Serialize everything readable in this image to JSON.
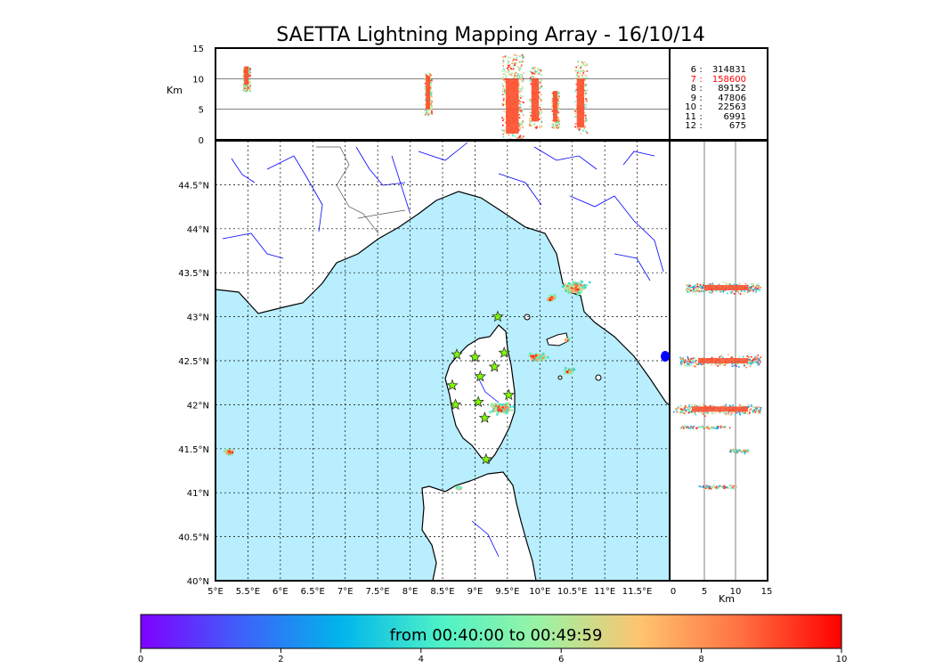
{
  "chart_data": {
    "type": "scatter",
    "title": "SAETTA Lightning Mapping Array - 16/10/14",
    "map_panel": {
      "x_ticks": [
        "5°E",
        "5.5°E",
        "6°E",
        "6.5°E",
        "7°E",
        "7.5°E",
        "8°E",
        "8.5°E",
        "9°E",
        "9.5°E",
        "10°E",
        "10.5°E",
        "11°E",
        "11.5°E"
      ],
      "y_ticks": [
        "40°N",
        "40.5°N",
        "41°N",
        "41.5°N",
        "42°N",
        "42.5°N",
        "43°N",
        "43.5°N",
        "44°N",
        "44.5°N"
      ],
      "lon_range": [
        5,
        12
      ],
      "lat_range": [
        40,
        45
      ],
      "stations": [
        {
          "lon": 9.35,
          "lat": 43.0
        },
        {
          "lon": 8.72,
          "lat": 42.57
        },
        {
          "lon": 9.0,
          "lat": 42.54
        },
        {
          "lon": 9.45,
          "lat": 42.59
        },
        {
          "lon": 9.3,
          "lat": 42.43
        },
        {
          "lon": 9.08,
          "lat": 42.32
        },
        {
          "lon": 8.65,
          "lat": 42.22
        },
        {
          "lon": 9.52,
          "lat": 42.11
        },
        {
          "lon": 8.7,
          "lat": 42.0
        },
        {
          "lon": 9.05,
          "lat": 42.03
        },
        {
          "lon": 9.15,
          "lat": 41.85
        },
        {
          "lon": 9.17,
          "lat": 41.38
        }
      ],
      "clusters": [
        {
          "lon": 10.55,
          "lat": 43.33,
          "size": "large"
        },
        {
          "lon": 10.18,
          "lat": 43.21,
          "size": "small"
        },
        {
          "lon": 9.95,
          "lat": 42.54,
          "size": "medium"
        },
        {
          "lon": 9.4,
          "lat": 41.96,
          "size": "large"
        },
        {
          "lon": 10.45,
          "lat": 42.38,
          "size": "small"
        },
        {
          "lon": 5.22,
          "lat": 41.46,
          "size": "small"
        },
        {
          "lon": 8.75,
          "lat": 41.05,
          "size": "tiny"
        },
        {
          "lon": 10.42,
          "lat": 42.74,
          "size": "tiny"
        }
      ]
    },
    "time_panel": {
      "y_label": "Km",
      "y_ticks": [
        "0",
        "5",
        "10",
        "15"
      ],
      "y_range": [
        0,
        15
      ],
      "columns": [
        {
          "frac": 0.06,
          "alt": [
            8,
            12
          ]
        },
        {
          "frac": 0.46,
          "alt": [
            4,
            11
          ]
        },
        {
          "frac": 0.63,
          "alt": [
            0,
            14
          ]
        },
        {
          "frac": 0.69,
          "alt": [
            2,
            12
          ]
        },
        {
          "frac": 0.74,
          "alt": [
            2,
            8
          ]
        },
        {
          "frac": 0.79,
          "alt": [
            1,
            13
          ]
        }
      ]
    },
    "side_panel": {
      "x_label": "Km",
      "x_ticks": [
        "0",
        "5",
        "10",
        "15"
      ],
      "x_range": [
        0,
        15
      ],
      "bands": [
        {
          "lat": 43.33,
          "alt": [
            2,
            14
          ]
        },
        {
          "lat": 42.5,
          "alt": [
            1,
            14
          ]
        },
        {
          "lat": 41.95,
          "alt": [
            0,
            14
          ]
        },
        {
          "lat": 41.75,
          "alt": [
            1,
            9
          ]
        },
        {
          "lat": 41.48,
          "alt": [
            9,
            12
          ]
        },
        {
          "lat": 41.07,
          "alt": [
            4,
            10
          ]
        }
      ]
    },
    "stats": [
      {
        "stations": "6",
        "count": "314831",
        "highlight": false
      },
      {
        "stations": "7",
        "count": "158600",
        "highlight": true
      },
      {
        "stations": "8",
        "count": "89152",
        "highlight": false
      },
      {
        "stations": "9",
        "count": "47806",
        "highlight": false
      },
      {
        "stations": "10",
        "count": "22563",
        "highlight": false
      },
      {
        "stations": "11",
        "count": "6991",
        "highlight": false
      },
      {
        "stations": "12",
        "count": "675",
        "highlight": false
      }
    ],
    "colorbar": {
      "label": "from 00:40:00 to 00:49:59",
      "ticks": [
        "0",
        "2",
        "4",
        "6",
        "8",
        "10"
      ],
      "range": [
        0,
        10
      ],
      "colors": [
        "#7f00ff",
        "#3f60fa",
        "#00b5eb",
        "#4ef2c7",
        "#9bf3a4",
        "#ffc36e",
        "#ff7041",
        "#ff0000"
      ]
    },
    "colors": {
      "sea": "#b8eefd",
      "river": "#0000ff",
      "station": "#7cfc00"
    }
  }
}
